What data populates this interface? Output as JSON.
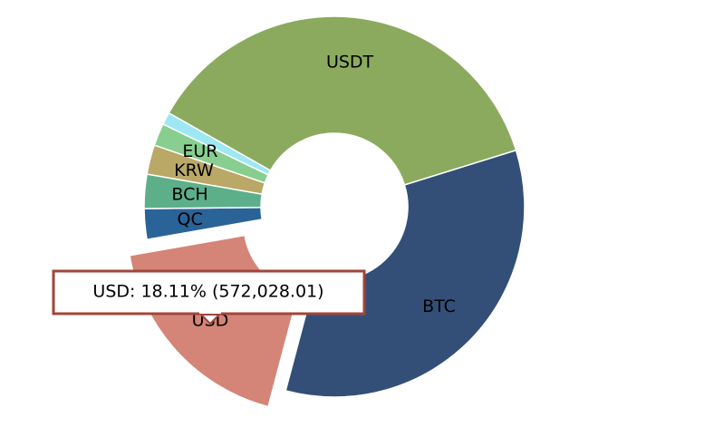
{
  "chart_data": {
    "type": "pie",
    "categories": [
      "USDT",
      "BTC",
      "USD",
      "QC",
      "BCH",
      "KRW",
      "EUR",
      null
    ],
    "values": [
      1168693,
      1070776,
      572028.01,
      82124,
      91600,
      78966,
      60014,
      33165
    ],
    "colors": [
      "#8baa5e",
      "#334f78",
      "#d48577",
      "#2a6398",
      "#5daf8a",
      "#b9a866",
      "#87ce8f",
      "#9ee8f3"
    ],
    "tooltip": "USD: 18.11% (572,028.01)"
  }
}
